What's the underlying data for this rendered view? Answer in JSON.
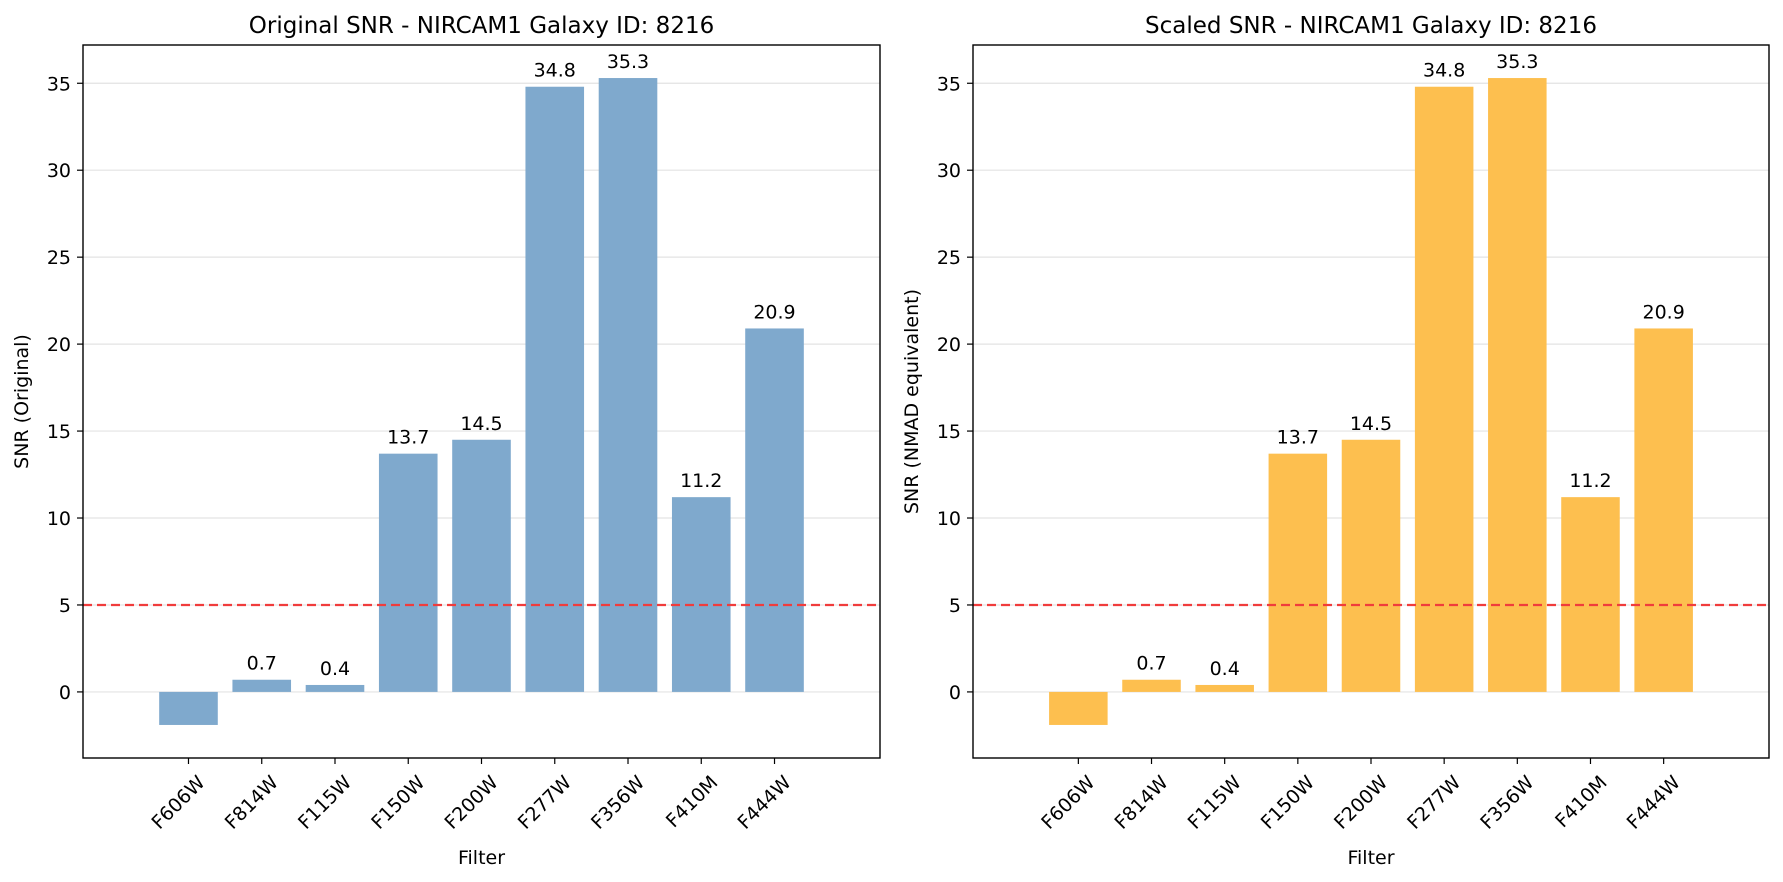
{
  "chart_data": [
    {
      "type": "bar",
      "title": "Original SNR - NIRCAM1 Galaxy ID: 8216",
      "xlabel": "Filter",
      "ylabel": "SNR (Original)",
      "categories": [
        "F606W",
        "F814W",
        "F115W",
        "F150W",
        "F200W",
        "F277W",
        "F356W",
        "F410M",
        "F444W"
      ],
      "values": [
        -1.9,
        0.7,
        0.4,
        13.7,
        14.5,
        34.8,
        35.3,
        11.2,
        20.9
      ],
      "value_labels": [
        "",
        "0.7",
        "0.4",
        "13.7",
        "14.5",
        "34.8",
        "35.3",
        "11.2",
        "20.9"
      ],
      "ylim": [
        -3.8,
        37.2
      ],
      "yticks": [
        0,
        5,
        10,
        15,
        20,
        25,
        30,
        35
      ],
      "threshold": 5,
      "bar_color": "#7fa9cd",
      "threshold_color": "#f03c3c",
      "grid": "y"
    },
    {
      "type": "bar",
      "title": "Scaled SNR - NIRCAM1 Galaxy ID: 8216",
      "xlabel": "Filter",
      "ylabel": "SNR (NMAD equivalent)",
      "categories": [
        "F606W",
        "F814W",
        "F115W",
        "F150W",
        "F200W",
        "F277W",
        "F356W",
        "F410M",
        "F444W"
      ],
      "values": [
        -1.9,
        0.7,
        0.4,
        13.7,
        14.5,
        34.8,
        35.3,
        11.2,
        20.9
      ],
      "value_labels": [
        "",
        "0.7",
        "0.4",
        "13.7",
        "14.5",
        "34.8",
        "35.3",
        "11.2",
        "20.9"
      ],
      "ylim": [
        -3.8,
        37.2
      ],
      "yticks": [
        0,
        5,
        10,
        15,
        20,
        25,
        30,
        35
      ],
      "threshold": 5,
      "bar_color": "#fdbf4f",
      "threshold_color": "#f03c3c",
      "grid": "y"
    }
  ]
}
